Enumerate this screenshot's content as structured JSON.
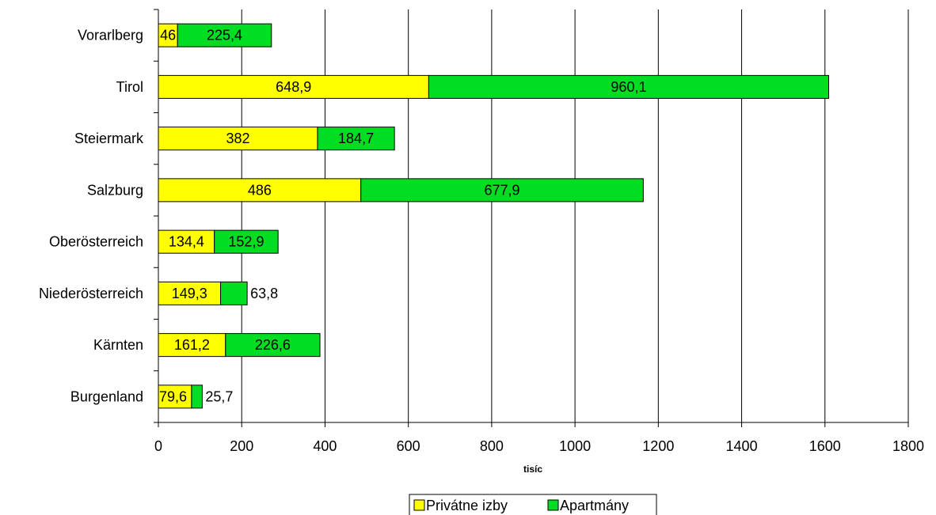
{
  "chart_data": {
    "type": "bar",
    "orientation": "horizontal",
    "stacked": true,
    "categories": [
      "Burgenland",
      "Kärnten",
      "Niederösterreich",
      "Oberösterreich",
      "Salzburg",
      "Steiermark",
      "Tirol",
      "Vorarlberg"
    ],
    "series": [
      {
        "name": "Privátne izby",
        "color": "#ffff00",
        "values": [
          79.6,
          161.2,
          149.3,
          134.4,
          486,
          382,
          648.9,
          46
        ],
        "labels": [
          "79,6",
          "161,2",
          "149,3",
          "134,4",
          "486",
          "382",
          "648,9",
          "46"
        ]
      },
      {
        "name": "Apartmány",
        "color": "#00dd22",
        "values": [
          25.7,
          226.6,
          63.8,
          152.9,
          677.9,
          184.7,
          960.1,
          225.4
        ],
        "labels": [
          "25,7",
          "226,6",
          "63,8",
          "152,9",
          "677,9",
          "184,7",
          "960,1",
          "225,4"
        ]
      }
    ],
    "xlabel": "tisíc",
    "xlim": [
      0,
      1800
    ],
    "xticks": [
      0,
      200,
      400,
      600,
      800,
      1000,
      1200,
      1400,
      1600,
      1800
    ],
    "grid": "vertical",
    "legend": "bottom"
  }
}
